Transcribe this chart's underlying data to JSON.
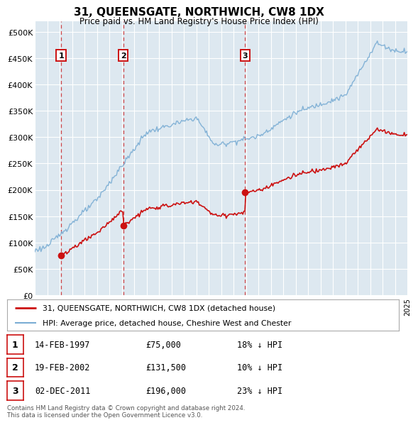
{
  "title": "31, QUEENSGATE, NORTHWICH, CW8 1DX",
  "subtitle": "Price paid vs. HM Land Registry's House Price Index (HPI)",
  "background_color": "#ffffff",
  "plot_bg_color": "#dde8f0",
  "grid_color": "#ffffff",
  "hpi_color": "#7aadd4",
  "price_color": "#cc1111",
  "ylim": [
    0,
    520000
  ],
  "ytick_vals": [
    0,
    50000,
    100000,
    150000,
    200000,
    250000,
    300000,
    350000,
    400000,
    450000,
    500000
  ],
  "ytick_labels": [
    "£0",
    "£50K",
    "£100K",
    "£150K",
    "£200K",
    "£250K",
    "£300K",
    "£350K",
    "£400K",
    "£450K",
    "£500K"
  ],
  "xmin": 1995,
  "xmax": 2025,
  "sale_years": [
    1997.12,
    2002.13,
    2011.92
  ],
  "sale_prices": [
    75000,
    131500,
    196000
  ],
  "sale_labels": [
    "1",
    "2",
    "3"
  ],
  "legend_line1": "31, QUEENSGATE, NORTHWICH, CW8 1DX (detached house)",
  "legend_line2": "HPI: Average price, detached house, Cheshire West and Chester",
  "table_rows": [
    [
      "1",
      "14-FEB-1997",
      "£75,000",
      "18% ↓ HPI"
    ],
    [
      "2",
      "19-FEB-2002",
      "£131,500",
      "10% ↓ HPI"
    ],
    [
      "3",
      "02-DEC-2011",
      "£196,000",
      "23% ↓ HPI"
    ]
  ],
  "footnote": "Contains HM Land Registry data © Crown copyright and database right 2024.\nThis data is licensed under the Open Government Licence v3.0."
}
